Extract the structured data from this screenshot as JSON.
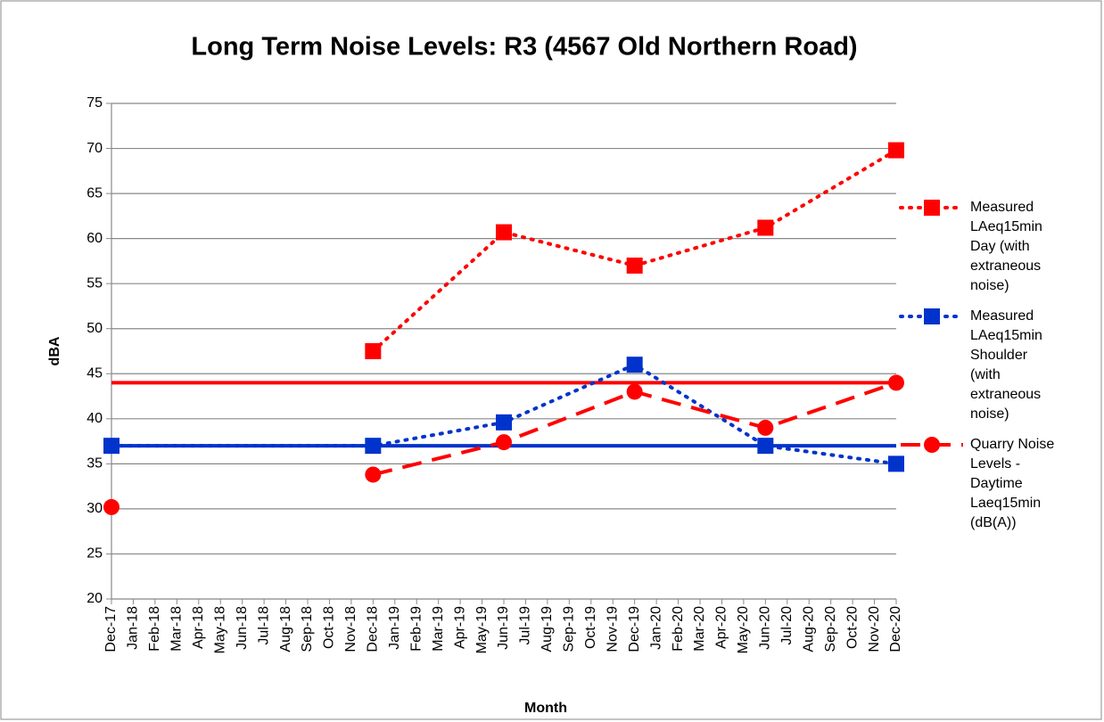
{
  "chart_data": {
    "type": "line",
    "title": "Long Term Noise Levels: R3 (4567 Old Northern Road)",
    "x_label": "Month",
    "y_label": "dBA",
    "categories": [
      "Dec-17",
      "Jan-18",
      "Feb-18",
      "Mar-18",
      "Apr-18",
      "May-18",
      "Jun-18",
      "Jul-18",
      "Aug-18",
      "Sep-18",
      "Oct-18",
      "Nov-18",
      "Dec-18",
      "Jan-19",
      "Feb-19",
      "Mar-19",
      "Apr-19",
      "May-19",
      "Jun-19",
      "Jul-19",
      "Aug-19",
      "Sep-19",
      "Oct-19",
      "Nov-19",
      "Dec-19",
      "Jan-20",
      "Feb-20",
      "Mar-20",
      "Apr-20",
      "May-20",
      "Jun-20",
      "Jul-20",
      "Aug-20",
      "Sep-20",
      "Oct-20",
      "Nov-20",
      "Dec-20"
    ],
    "ylim": [
      20,
      75
    ],
    "yticks": [
      20,
      25,
      30,
      35,
      40,
      45,
      50,
      55,
      60,
      65,
      70,
      75
    ],
    "grid": true,
    "hlines": [
      {
        "value": 44,
        "color": "#ff0000"
      },
      {
        "value": 37,
        "color": "#0033cc"
      }
    ],
    "series": [
      {
        "name": "Measured LAeq15min Day (with extraneous noise)",
        "color": "#ff0000",
        "dash": "dotted",
        "marker": "square",
        "x": [
          "Dec-18",
          "Jun-19",
          "Dec-19",
          "Jun-20",
          "Dec-20"
        ],
        "values": [
          47.5,
          60.7,
          57,
          61.2,
          69.8
        ]
      },
      {
        "name": "Measured LAeq15min Shoulder (with extraneous noise)",
        "color": "#0033cc",
        "dash": "dotted",
        "marker": "square",
        "x": [
          "Dec-17",
          "Dec-18",
          "Jun-19",
          "Dec-19",
          "Jun-20",
          "Dec-20"
        ],
        "values": [
          37,
          37,
          39.6,
          46,
          37,
          35
        ]
      },
      {
        "name": "Quarry Noise Levels - Daytime Laeq15min (dB(A))",
        "color": "#ff0000",
        "dash": "dashed",
        "marker": "circle",
        "x": [
          "Dec-17",
          "Jan-18",
          "Dec-18",
          "Jun-19",
          "Dec-19",
          "Jun-20",
          "Dec-20"
        ],
        "values": [
          30.2,
          null,
          33.8,
          37.4,
          43,
          39,
          44
        ]
      }
    ]
  }
}
